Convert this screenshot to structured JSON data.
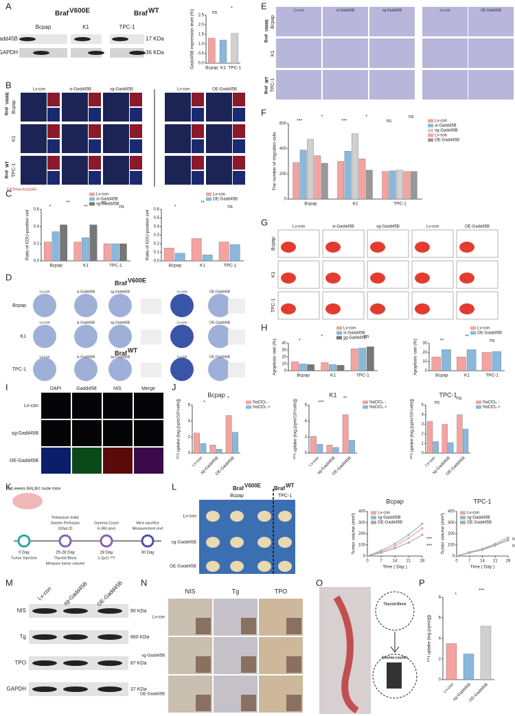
{
  "panel_letters": [
    "A",
    "B",
    "C",
    "D",
    "E",
    "F",
    "G",
    "H",
    "I",
    "J",
    "K",
    "L",
    "M",
    "N",
    "O",
    "P"
  ],
  "labels": {
    "braf": "Braf",
    "v600e": "V600E",
    "wt": "WT",
    "cells": [
      "Bcpap",
      "K1",
      "TPC-1"
    ],
    "blot_a_proteins": [
      "Gadd45B",
      "GAPDH"
    ],
    "blot_a_sizes": [
      "17 KDa",
      "36 KDa"
    ],
    "groups": [
      "Lv-con",
      "si-Gadd45B",
      "sg-Gadd45B",
      "OE-Gadd45B"
    ],
    "edu_stain": "EdU/Hoechst33342",
    "if_channels": [
      "DAPI",
      "Gadd45B",
      "NIS",
      "Merge"
    ],
    "mouse": "4-6 weeks BALB/c nude mice",
    "timeline": [
      {
        "above": [],
        "day": "0 Day",
        "below": [
          "Tumor Injection"
        ]
      },
      {
        "above": [
          "Potassium Iodid",
          "Gastric Perfusion",
          "200μL/D"
        ],
        "day": "25-28 Day",
        "below": [
          "Thyroid Block",
          "Measure tumor volume"
        ]
      },
      {
        "above": [
          "Gamma Count",
          "6-36h post"
        ],
        "day": "28 Day",
        "below": [
          "1-2μCi ¹²⁵I"
        ]
      },
      {
        "above": [
          "Mice sacrifice",
          "Measurement end"
        ],
        "day": "30 Day",
        "below": []
      }
    ],
    "blot_m_proteins": [
      "NIS",
      "Tg",
      "TPO",
      "GAPDH"
    ],
    "blot_m_sizes": [
      "90 KDa",
      "660 KDa",
      "87 KDa",
      "37 KDa"
    ],
    "ihc_stains": [
      "NIS",
      "Tg",
      "TPO"
    ],
    "schematic": [
      "Thyroid Block",
      "Gamma counter"
    ]
  },
  "chart_data": [
    {
      "type": "bar",
      "y_label": "Gadd45B expression level (%)",
      "categories": [
        "Bcpap",
        "K1",
        "TPC-1"
      ],
      "values": [
        1.3,
        1.2,
        1.55
      ],
      "colors": [
        "#f4a3a0",
        "#8ab8dc",
        "#d0d0d0"
      ],
      "ylim": [
        0,
        2.5
      ],
      "yticks": [
        {
          "value": 0,
          "label": "0.0"
        },
        {
          "value": 0.5,
          "label": "0.5"
        },
        {
          "value": 1,
          "label": "1.0"
        },
        {
          "value": 1.5,
          "label": "1.5"
        },
        {
          "value": 2,
          "label": "2.0"
        },
        {
          "value": 2.5,
          "label": "2.5"
        }
      ],
      "annotations": [
        "ns",
        "*"
      ]
    },
    {
      "type": "bar",
      "y_label": "The number of migration cells",
      "categories": [
        "Bcpap",
        "K1",
        "TPC-1"
      ],
      "legend": "right",
      "ylim": [
        0,
        600
      ],
      "yticks": [
        0,
        200,
        400,
        600
      ],
      "series": [
        {
          "name": "Lv-con",
          "color": "#f4a3a0",
          "values": [
            290,
            300,
            220
          ]
        },
        {
          "name": "si-Gadd45B",
          "color": "#8ab8dc",
          "values": [
            390,
            380,
            225
          ]
        },
        {
          "name": "sg-Gadd45B",
          "color": "#d0d0d0",
          "values": [
            475,
            520,
            230
          ]
        },
        {
          "name": "Lv-con",
          "color": "#f4a3a0",
          "values": [
            345,
            320,
            220
          ]
        },
        {
          "name": "OE-Gadd45B",
          "color": "#999999",
          "values": [
            285,
            230,
            220
          ]
        }
      ],
      "annotations": [
        "***",
        "*",
        "***",
        "*",
        "ns",
        "ns"
      ]
    },
    {
      "type": "bar",
      "y_label": "Ratio of EDU-positive cell",
      "categories": [
        "Bcpap",
        "K1",
        "TPC-1"
      ],
      "legend": "top",
      "ylim": [
        0,
        0.6
      ],
      "yticks": [
        {
          "value": 0,
          "label": "0.0"
        },
        {
          "value": 0.2,
          "label": "0.2"
        },
        {
          "value": 0.4,
          "label": "0.4"
        },
        {
          "value": 0.6,
          "label": "0.6"
        }
      ],
      "series": [
        {
          "name": "Lv-con",
          "color": "#f4a3a0",
          "values": [
            0.22,
            0.22,
            0.2
          ]
        },
        {
          "name": "si-Gadd45B",
          "color": "#8ab8dc",
          "values": [
            0.34,
            0.27,
            0.2
          ]
        },
        {
          "name": "sg-Gadd45B",
          "color": "#777777",
          "values": [
            0.42,
            0.42,
            0.2
          ]
        }
      ],
      "annotations": [
        "*",
        "**",
        "**",
        "ns",
        "ns"
      ]
    },
    {
      "type": "bar",
      "y_label": "Ratio of EDU-positive cell",
      "categories": [
        "Bcpap",
        "K1",
        "TPC-1"
      ],
      "legend": "top",
      "ylim": [
        0,
        0.6
      ],
      "yticks": [
        {
          "value": 0,
          "label": "0.0"
        },
        {
          "value": 0.1,
          "label": "0.1"
        },
        {
          "value": 0.2,
          "label": "0.2"
        },
        {
          "value": 0.3,
          "label": "0.3"
        },
        {
          "value": 0.4,
          "label": "0.4"
        },
        {
          "value": 0.5,
          "label": "0.5"
        },
        {
          "value": 0.6,
          "label": "0.6"
        }
      ],
      "series": [
        {
          "name": "Lv-con",
          "color": "#f4a3a0",
          "values": [
            0.15,
            0.26,
            0.22
          ]
        },
        {
          "name": "OE-Gadd45B",
          "color": "#8ab8dc",
          "values": [
            0.09,
            0.07,
            0.19
          ]
        }
      ],
      "annotations": [
        "*",
        "**",
        "ns"
      ]
    },
    {
      "type": "bar",
      "y_label": "Apoptosis rate (%)",
      "categories": [
        "Bcpap",
        "K1",
        "TPC-1"
      ],
      "legend": "top",
      "ylim": [
        0,
        40
      ],
      "yticks": [
        0,
        10,
        20,
        30,
        40
      ],
      "series": [
        {
          "name": "Lv-con",
          "color": "#f4a3a0",
          "values": [
            13,
            12,
            32
          ]
        },
        {
          "name": "si-Gadd45B",
          "color": "#8ab8dc",
          "values": [
            10,
            9,
            33
          ]
        },
        {
          "name": "sg-Gadd45B",
          "color": "#777777",
          "values": [
            9,
            8,
            35
          ]
        }
      ],
      "annotations": [
        "*",
        "*",
        "*",
        "ns"
      ]
    },
    {
      "type": "bar",
      "y_label": "Apoptosis rate (%)",
      "categories": [
        "Bcpap",
        "K1",
        "TPC-1"
      ],
      "legend": "top",
      "ylim": [
        0,
        30
      ],
      "yticks": [
        0,
        10,
        20,
        30
      ],
      "series": [
        {
          "name": "Lv-con",
          "color": "#f4a3a0",
          "values": [
            15,
            15,
            20
          ]
        },
        {
          "name": "OE-Gadd45B",
          "color": "#8ab8dc",
          "values": [
            23,
            23,
            21
          ]
        }
      ],
      "annotations": [
        "**",
        "**",
        "ns"
      ]
    },
    {
      "type": "bar",
      "title": "Bcpap",
      "y_label": "¹²⁵I uptake (log₂[cpm/10⁵cells])",
      "categories": [
        "Lv-con",
        "sg-Gadd45B",
        "OE-Gadd45B"
      ],
      "xtick_rotation": 45,
      "legend": "right",
      "ylim": [
        0,
        6
      ],
      "yticks": [
        0,
        2,
        4,
        6
      ],
      "series": [
        {
          "name": "NaClO₄ -",
          "color": "#f4a3a0",
          "values": [
            2.5,
            1.0,
            4.7
          ]
        },
        {
          "name": "NaClO₄ +",
          "color": "#8ab8dc",
          "values": [
            1.2,
            0.5,
            2.6
          ]
        }
      ],
      "annotations": [
        "*",
        "*"
      ]
    },
    {
      "type": "bar",
      "title": "K1",
      "y_label": "¹²⁵I uptake (log₂[cpm/10⁵cells])",
      "categories": [
        "Lv-con",
        "sg-Gadd45B",
        "OE-Gadd45B"
      ],
      "xtick_rotation": 45,
      "legend": "right",
      "ylim": [
        0,
        6
      ],
      "yticks": [
        0,
        2,
        4,
        6
      ],
      "series": [
        {
          "name": "NaClO₄ -",
          "color": "#f4a3a0",
          "values": [
            2.1,
            1.0,
            4.8
          ]
        },
        {
          "name": "NaClO₄ +",
          "color": "#8ab8dc",
          "values": [
            1.1,
            0.7,
            1.6
          ]
        }
      ],
      "annotations": [
        "***",
        "**"
      ]
    },
    {
      "type": "bar",
      "title": "TPC-1",
      "y_label": "¹²⁵I uptake (log₂[cpm/10⁵cells])",
      "categories": [
        "Lv-con",
        "sg-Gadd45B",
        "OE-Gadd45B"
      ],
      "xtick_rotation": 45,
      "legend": "right",
      "ylim": [
        0,
        5
      ],
      "yticks": [
        0,
        1,
        2,
        3,
        4,
        5
      ],
      "series": [
        {
          "name": "NaClO₄ -",
          "color": "#f4a3a0",
          "values": [
            3.3,
            3.0,
            4.0
          ]
        },
        {
          "name": "NaClO₄ +",
          "color": "#8ab8dc",
          "values": [
            1.2,
            1.1,
            2.5
          ]
        }
      ],
      "annotations": [
        "ns",
        "ns"
      ]
    },
    {
      "type": "line",
      "title": "Bcpap",
      "x_label": "Time ( Day )",
      "y_label": "Tumor volume (mm³)",
      "x": [
        0,
        7,
        14,
        21,
        28
      ],
      "xlim": [
        0,
        28
      ],
      "xticks": [
        0,
        7,
        14,
        21,
        28
      ],
      "ylim": [
        0,
        400
      ],
      "yticks": [
        0,
        100,
        200,
        300,
        400
      ],
      "legend": "upper left",
      "series": [
        {
          "name": "Lv-con",
          "color": "#f4a3a0",
          "values": [
            0,
            40,
            90,
            160,
            250
          ]
        },
        {
          "name": "sg-Gadd45B",
          "color": "#8ab8dc",
          "values": [
            0,
            50,
            110,
            190,
            290
          ]
        },
        {
          "name": "OE-Gadd45B",
          "color": "#aaaaaa",
          "values": [
            0,
            30,
            70,
            120,
            190
          ]
        }
      ],
      "annotations": [
        "***",
        "***"
      ]
    },
    {
      "type": "line",
      "title": "TPC-1",
      "x_label": "Time ( Day )",
      "y_label": "Tumor volume (mm³)",
      "x": [
        0,
        7,
        14,
        21,
        28
      ],
      "xlim": [
        0,
        28
      ],
      "xticks": [
        0,
        7,
        14,
        21,
        28
      ],
      "ylim": [
        0,
        400
      ],
      "yticks": [
        0,
        100,
        200,
        300,
        400
      ],
      "legend": "upper left",
      "series": [
        {
          "name": "Lv-con",
          "color": "#f4a3a0",
          "values": [
            0,
            30,
            60,
            100,
            150
          ]
        },
        {
          "name": "sg-Gadd45B",
          "color": "#8ab8dc",
          "values": [
            0,
            35,
            65,
            110,
            165
          ]
        },
        {
          "name": "OE-Gadd45B",
          "color": "#aaaaaa",
          "values": [
            0,
            30,
            55,
            95,
            140
          ]
        }
      ],
      "annotations": [
        "ns",
        "ns"
      ]
    },
    {
      "type": "bar",
      "y_label": "¹²⁵I uptake (log₂[cpm/g])",
      "categories": [
        "Lv-con",
        "sg-Gadd45B",
        "OE-Gadd45B"
      ],
      "xtick_rotation": 45,
      "values": [
        3.5,
        2.5,
        5.2
      ],
      "colors": [
        "#f4a3a0",
        "#8ab8dc",
        "#d0d0d0"
      ],
      "ylim": [
        0,
        8
      ],
      "yticks": [
        0,
        2,
        4,
        6,
        8
      ],
      "annotations": [
        "*",
        "***"
      ]
    }
  ]
}
